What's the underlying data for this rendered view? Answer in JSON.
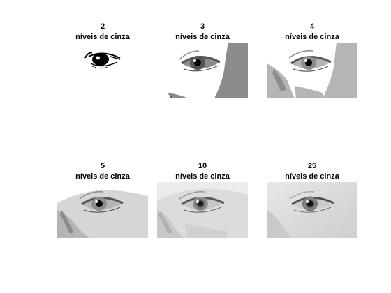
{
  "panels": [
    {
      "levels": "2",
      "caption": "níveis de cinza"
    },
    {
      "levels": "3",
      "caption": "níveis de cinza"
    },
    {
      "levels": "4",
      "caption": "níveis de cinza"
    },
    {
      "levels": "5",
      "caption": "níveis de cinza"
    },
    {
      "levels": "10",
      "caption": "níveis de cinza"
    },
    {
      "levels": "25",
      "caption": "níveis de cinza"
    }
  ],
  "colors": {
    "black": "#000000",
    "dark_gray": "#555555",
    "mid_gray": "#8c8c8c",
    "light_gray": "#b5b5b5",
    "pale_gray": "#d6d6d6",
    "white": "#ffffff"
  }
}
